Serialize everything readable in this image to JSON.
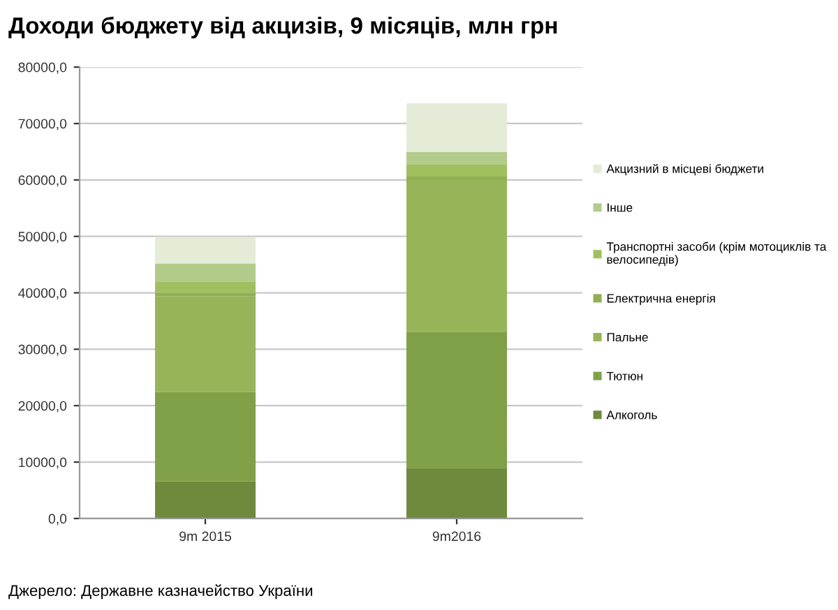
{
  "chart_data": {
    "type": "bar",
    "stacked": true,
    "title": "Доходи бюджету від акцизів, 9 місяців, млн грн",
    "categories": [
      "9m 2015",
      "9m2016"
    ],
    "series": [
      {
        "name": "Алкоголь",
        "color": "#6f8a3c",
        "values": [
          6600,
          9000
        ]
      },
      {
        "name": "Тютюн",
        "color": "#80a047",
        "values": [
          15800,
          24100
        ]
      },
      {
        "name": "Пальне",
        "color": "#97b459",
        "values": [
          17000,
          27000
        ]
      },
      {
        "name": "Електрична енергія",
        "color": "#8fb050",
        "values": [
          600,
          500
        ]
      },
      {
        "name": "Транспортні засоби (крім мотоциклів та\nвелосипедів)",
        "color": "#a0c060",
        "values": [
          2000,
          2200
        ]
      },
      {
        "name": "Інше",
        "color": "#b3cb8a",
        "values": [
          3200,
          2200
        ]
      },
      {
        "name": "Акцизний в місцеві бюджети",
        "color": "#e4ecd8",
        "values": [
          4700,
          8600
        ]
      }
    ],
    "ylim": [
      0,
      80000
    ],
    "yticks": [
      {
        "value": 0,
        "label": "0,0"
      },
      {
        "value": 10000,
        "label": "10000,0"
      },
      {
        "value": 20000,
        "label": "20000,0"
      },
      {
        "value": 30000,
        "label": "30000,0"
      },
      {
        "value": 40000,
        "label": "40000,0"
      },
      {
        "value": 50000,
        "label": "50000,0"
      },
      {
        "value": 60000,
        "label": "60000,0"
      },
      {
        "value": 70000,
        "label": "70000,0"
      },
      {
        "value": 80000,
        "label": "80000,0"
      }
    ],
    "grid": "y",
    "legend": "right",
    "annotations": [
      "Джерело: Державне казначейство України"
    ]
  }
}
